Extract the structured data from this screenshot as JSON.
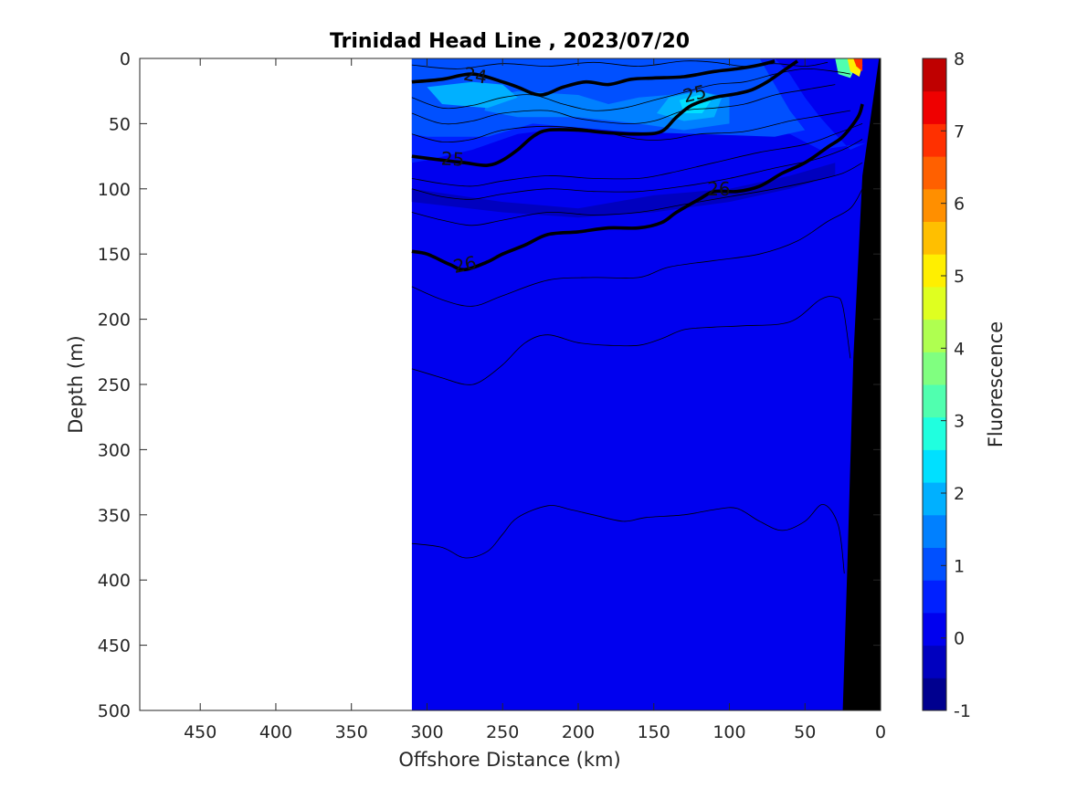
{
  "chart_data": {
    "type": "heatmap",
    "title": "Trinidad Head Line , 2023/07/20",
    "xlabel": "Offshore Distance (km)",
    "ylabel": "Depth (m)",
    "xlim": [
      490,
      0
    ],
    "ylim": [
      0,
      500
    ],
    "x_ticks": [
      "450",
      "400",
      "350",
      "300",
      "250",
      "200",
      "150",
      "100",
      "50",
      "0"
    ],
    "x_tick_values": [
      450,
      400,
      350,
      300,
      250,
      200,
      150,
      100,
      50,
      0
    ],
    "y_ticks": [
      "0",
      "50",
      "100",
      "150",
      "200",
      "250",
      "300",
      "350",
      "400",
      "450",
      "500"
    ],
    "y_tick_values": [
      0,
      50,
      100,
      150,
      200,
      250,
      300,
      350,
      400,
      450,
      500
    ],
    "colorbar": {
      "label": "Fluorescence",
      "range": [
        -1,
        8
      ],
      "ticks": [
        "-1",
        "0",
        "1",
        "2",
        "3",
        "4",
        "5",
        "6",
        "7",
        "8"
      ],
      "tick_values": [
        -1,
        0,
        1,
        2,
        3,
        4,
        5,
        6,
        7,
        8
      ],
      "colors": [
        "#00008f",
        "#0000bf",
        "#0000ef",
        "#0020ff",
        "#0050ff",
        "#0080ff",
        "#00b0ff",
        "#00e0ff",
        "#20ffdf",
        "#50ffaf",
        "#80ff80",
        "#afff50",
        "#dfff20",
        "#ffef00",
        "#ffbf00",
        "#ff8f00",
        "#ff6000",
        "#ff3000",
        "#ef0000",
        "#bf0000"
      ]
    },
    "data_extent_km": [
      310,
      0
    ],
    "background_value": 0.3,
    "background_color": "#0000ef",
    "patches": [
      {
        "value": 0.8,
        "color": "#0020ff",
        "points": [
          [
            310,
            0
          ],
          [
            70,
            0
          ],
          [
            60,
            12
          ],
          [
            50,
            30
          ],
          [
            40,
            45
          ],
          [
            30,
            58
          ],
          [
            20,
            70
          ],
          [
            10,
            65
          ],
          [
            40,
            70
          ],
          [
            60,
            58
          ],
          [
            90,
            55
          ],
          [
            120,
            50
          ],
          [
            160,
            55
          ],
          [
            200,
            52
          ],
          [
            240,
            58
          ],
          [
            270,
            70
          ],
          [
            300,
            78
          ],
          [
            310,
            80
          ]
        ]
      },
      {
        "value": 1.3,
        "color": "#0050ff",
        "points": [
          [
            310,
            0
          ],
          [
            80,
            0
          ],
          [
            70,
            20
          ],
          [
            60,
            40
          ],
          [
            50,
            55
          ],
          [
            70,
            60
          ],
          [
            120,
            58
          ],
          [
            170,
            56
          ],
          [
            230,
            50
          ],
          [
            260,
            60
          ],
          [
            300,
            60
          ],
          [
            310,
            58
          ]
        ]
      },
      {
        "value": 1.8,
        "color": "#0080ff",
        "points": [
          [
            260,
            30
          ],
          [
            240,
            25
          ],
          [
            200,
            28
          ],
          [
            180,
            35
          ],
          [
            160,
            30
          ],
          [
            140,
            28
          ],
          [
            120,
            25
          ],
          [
            100,
            30
          ],
          [
            100,
            50
          ],
          [
            130,
            55
          ],
          [
            160,
            50
          ],
          [
            200,
            45
          ],
          [
            240,
            45
          ],
          [
            262,
            40
          ]
        ]
      },
      {
        "value": 2.3,
        "color": "#00b0ff",
        "points": [
          [
            140,
            30
          ],
          [
            120,
            25
          ],
          [
            105,
            30
          ],
          [
            110,
            45
          ],
          [
            130,
            48
          ],
          [
            148,
            42
          ]
        ]
      },
      {
        "value": 2.8,
        "color": "#00e0ff",
        "points": [
          [
            133,
            32
          ],
          [
            120,
            28
          ],
          [
            112,
            32
          ],
          [
            118,
            42
          ],
          [
            130,
            42
          ]
        ]
      },
      {
        "value": 2.3,
        "color": "#00b0ff",
        "points": [
          [
            300,
            22
          ],
          [
            270,
            18
          ],
          [
            250,
            20
          ],
          [
            240,
            30
          ],
          [
            260,
            38
          ],
          [
            290,
            35
          ]
        ]
      },
      {
        "value": 3.5,
        "color": "#50ffaf",
        "points": [
          [
            30,
            0
          ],
          [
            20,
            0
          ],
          [
            14,
            0
          ],
          [
            20,
            15
          ],
          [
            28,
            12
          ]
        ]
      },
      {
        "value": 5.0,
        "color": "#ffef00",
        "points": [
          [
            22,
            0
          ],
          [
            15,
            0
          ],
          [
            12,
            5
          ],
          [
            14,
            14
          ],
          [
            20,
            10
          ]
        ]
      },
      {
        "value": 6.8,
        "color": "#ff3000",
        "points": [
          [
            18,
            0
          ],
          [
            12,
            0
          ],
          [
            12,
            10
          ],
          [
            16,
            6
          ]
        ]
      },
      {
        "value": -0.2,
        "color": "#0000bf",
        "points": [
          [
            310,
            100
          ],
          [
            250,
            110
          ],
          [
            200,
            115
          ],
          [
            150,
            105
          ],
          [
            100,
            100
          ],
          [
            60,
            90
          ],
          [
            30,
            80
          ],
          [
            30,
            90
          ],
          [
            60,
            100
          ],
          [
            100,
            110
          ],
          [
            150,
            118
          ],
          [
            200,
            122
          ],
          [
            250,
            118
          ],
          [
            310,
            110
          ]
        ]
      }
    ],
    "seafloor": {
      "color": "#000000",
      "points": [
        [
          0,
          0
        ],
        [
          1,
          0
        ],
        [
          12,
          90
        ],
        [
          18,
          230
        ],
        [
          22,
          390
        ],
        [
          25,
          500
        ],
        [
          0,
          500
        ]
      ]
    },
    "contours_thin": [
      [
        [
          310,
          5
        ],
        [
          280,
          8
        ],
        [
          250,
          4
        ],
        [
          220,
          6
        ],
        [
          190,
          3
        ],
        [
          160,
          6
        ],
        [
          130,
          2
        ],
        [
          110,
          3
        ],
        [
          90,
          6
        ],
        [
          70,
          4
        ],
        [
          50,
          6
        ],
        [
          35,
          3
        ]
      ],
      [
        [
          310,
          30
        ],
        [
          290,
          38
        ],
        [
          270,
          36
        ],
        [
          250,
          30
        ],
        [
          230,
          28
        ],
        [
          210,
          35
        ],
        [
          190,
          40
        ],
        [
          170,
          38
        ],
        [
          150,
          32
        ],
        [
          130,
          26
        ],
        [
          110,
          20
        ],
        [
          90,
          18
        ],
        [
          70,
          12
        ],
        [
          50,
          8
        ],
        [
          30,
          10
        ],
        [
          20,
          12
        ]
      ],
      [
        [
          310,
          42
        ],
        [
          290,
          50
        ],
        [
          270,
          48
        ],
        [
          250,
          42
        ],
        [
          220,
          40
        ],
        [
          200,
          46
        ],
        [
          170,
          50
        ],
        [
          150,
          48
        ],
        [
          130,
          40
        ],
        [
          110,
          38
        ],
        [
          90,
          35
        ],
        [
          70,
          28
        ],
        [
          50,
          24
        ],
        [
          30,
          20
        ]
      ],
      [
        [
          310,
          58
        ],
        [
          290,
          64
        ],
        [
          270,
          62
        ],
        [
          250,
          55
        ],
        [
          220,
          52
        ],
        [
          190,
          55
        ],
        [
          160,
          62
        ],
        [
          140,
          62
        ],
        [
          120,
          58
        ],
        [
          90,
          56
        ],
        [
          60,
          48
        ],
        [
          40,
          44
        ],
        [
          20,
          40
        ]
      ],
      [
        [
          310,
          92
        ],
        [
          290,
          96
        ],
        [
          270,
          98
        ],
        [
          250,
          94
        ],
        [
          220,
          90
        ],
        [
          190,
          92
        ],
        [
          160,
          92
        ],
        [
          140,
          88
        ],
        [
          110,
          80
        ],
        [
          80,
          72
        ],
        [
          50,
          66
        ],
        [
          30,
          58
        ],
        [
          12,
          50
        ]
      ],
      [
        [
          310,
          100
        ],
        [
          290,
          106
        ],
        [
          270,
          108
        ],
        [
          250,
          104
        ],
        [
          220,
          100
        ],
        [
          190,
          102
        ],
        [
          160,
          102
        ],
        [
          130,
          98
        ],
        [
          100,
          92
        ],
        [
          70,
          84
        ],
        [
          45,
          78
        ],
        [
          25,
          70
        ],
        [
          12,
          62
        ]
      ],
      [
        [
          310,
          118
        ],
        [
          290,
          124
        ],
        [
          270,
          128
        ],
        [
          250,
          124
        ],
        [
          220,
          118
        ],
        [
          190,
          120
        ],
        [
          160,
          118
        ],
        [
          130,
          112
        ],
        [
          100,
          106
        ],
        [
          70,
          100
        ],
        [
          45,
          94
        ],
        [
          25,
          88
        ],
        [
          12,
          80
        ]
      ],
      [
        [
          310,
          175
        ],
        [
          290,
          185
        ],
        [
          270,
          190
        ],
        [
          250,
          182
        ],
        [
          220,
          170
        ],
        [
          190,
          168
        ],
        [
          160,
          168
        ],
        [
          140,
          160
        ],
        [
          110,
          155
        ],
        [
          80,
          150
        ],
        [
          55,
          140
        ],
        [
          35,
          125
        ],
        [
          20,
          115
        ],
        [
          12,
          100
        ]
      ],
      [
        [
          310,
          238
        ],
        [
          290,
          245
        ],
        [
          275,
          250
        ],
        [
          265,
          248
        ],
        [
          250,
          235
        ],
        [
          235,
          218
        ],
        [
          220,
          212
        ],
        [
          200,
          218
        ],
        [
          180,
          220
        ],
        [
          160,
          220
        ],
        [
          145,
          215
        ],
        [
          130,
          208
        ],
        [
          110,
          206
        ],
        [
          90,
          205
        ],
        [
          60,
          202
        ],
        [
          40,
          185
        ],
        [
          30,
          183
        ],
        [
          25,
          190
        ],
        [
          20,
          230
        ]
      ],
      [
        [
          310,
          372
        ],
        [
          290,
          375
        ],
        [
          275,
          383
        ],
        [
          260,
          378
        ],
        [
          250,
          365
        ],
        [
          240,
          352
        ],
        [
          220,
          343
        ],
        [
          205,
          346
        ],
        [
          190,
          350
        ],
        [
          170,
          355
        ],
        [
          155,
          352
        ],
        [
          130,
          350
        ],
        [
          110,
          346
        ],
        [
          95,
          345
        ],
        [
          80,
          355
        ],
        [
          65,
          362
        ],
        [
          50,
          355
        ],
        [
          38,
          342
        ],
        [
          28,
          358
        ],
        [
          24,
          395
        ]
      ]
    ],
    "contours_bold": [
      {
        "label": "24",
        "points": [
          [
            310,
            18
          ],
          [
            290,
            16
          ],
          [
            270,
            12
          ],
          [
            250,
            18
          ],
          [
            240,
            22
          ],
          [
            225,
            28
          ],
          [
            210,
            22
          ],
          [
            195,
            18
          ],
          [
            180,
            20
          ],
          [
            165,
            16
          ],
          [
            150,
            15
          ],
          [
            130,
            14
          ],
          [
            110,
            10
          ],
          [
            95,
            8
          ],
          [
            80,
            5
          ],
          [
            70,
            2
          ]
        ]
      },
      {
        "label": "25",
        "points": [
          [
            310,
            75
          ],
          [
            290,
            78
          ],
          [
            275,
            80
          ],
          [
            260,
            82
          ],
          [
            250,
            78
          ],
          [
            240,
            70
          ],
          [
            230,
            60
          ],
          [
            220,
            55
          ],
          [
            200,
            55
          ],
          [
            180,
            57
          ],
          [
            160,
            58
          ],
          [
            145,
            56
          ],
          [
            135,
            45
          ],
          [
            125,
            36
          ],
          [
            110,
            30
          ],
          [
            95,
            27
          ],
          [
            85,
            24
          ],
          [
            75,
            18
          ],
          [
            65,
            10
          ],
          [
            55,
            2
          ]
        ]
      },
      {
        "label": "26",
        "points": [
          [
            310,
            148
          ],
          [
            300,
            150
          ],
          [
            285,
            158
          ],
          [
            275,
            162
          ],
          [
            260,
            156
          ],
          [
            250,
            150
          ],
          [
            235,
            143
          ],
          [
            220,
            135
          ],
          [
            200,
            133
          ],
          [
            180,
            130
          ],
          [
            160,
            130
          ],
          [
            145,
            126
          ],
          [
            135,
            118
          ],
          [
            120,
            108
          ],
          [
            110,
            102
          ],
          [
            95,
            102
          ],
          [
            80,
            98
          ],
          [
            65,
            88
          ],
          [
            50,
            80
          ],
          [
            35,
            68
          ],
          [
            25,
            60
          ],
          [
            15,
            45
          ],
          [
            12,
            35
          ]
        ]
      }
    ],
    "contour_labels": [
      {
        "text": "24",
        "x": 268,
        "y": 13,
        "angle": 10
      },
      {
        "text": "25",
        "x": 283,
        "y": 77,
        "angle": 3
      },
      {
        "text": "25",
        "x": 123,
        "y": 27,
        "angle": -14
      },
      {
        "text": "26",
        "x": 275,
        "y": 158,
        "angle": -12
      },
      {
        "text": "26",
        "x": 107,
        "y": 100,
        "angle": 0
      }
    ]
  }
}
